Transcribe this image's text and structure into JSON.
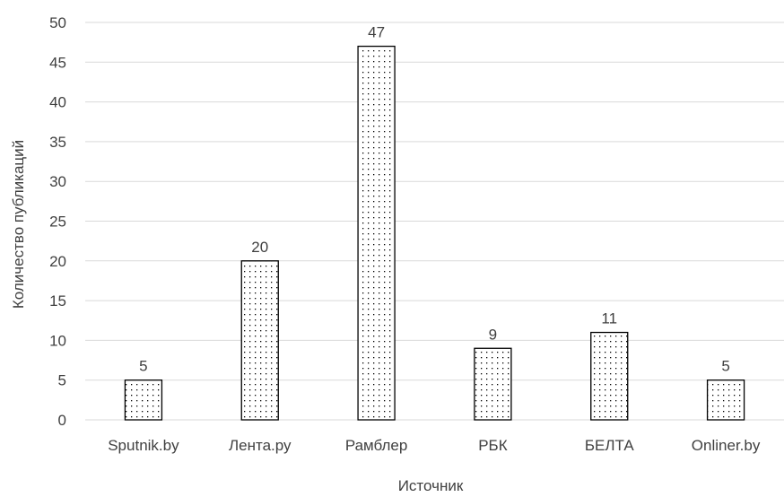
{
  "chart_data": {
    "type": "bar",
    "categories": [
      "Sputnik.by",
      "Лента.ру",
      "Рамблер",
      "РБК",
      "БЕЛТА",
      "Onliner.by"
    ],
    "values": [
      5,
      20,
      47,
      9,
      11,
      5
    ],
    "xlabel": "Источник",
    "ylabel": "Количество публикаций",
    "ylim": [
      0,
      50
    ],
    "yticks": [
      0,
      5,
      10,
      15,
      20,
      25,
      30,
      35,
      40,
      45,
      50
    ],
    "grid": true,
    "data_labels": true,
    "bar_fill": "dotted pattern",
    "colors": {
      "bar_stroke": "#000000",
      "dots": "#000000",
      "grid": "#d9d9d9",
      "text": "#404040"
    }
  }
}
